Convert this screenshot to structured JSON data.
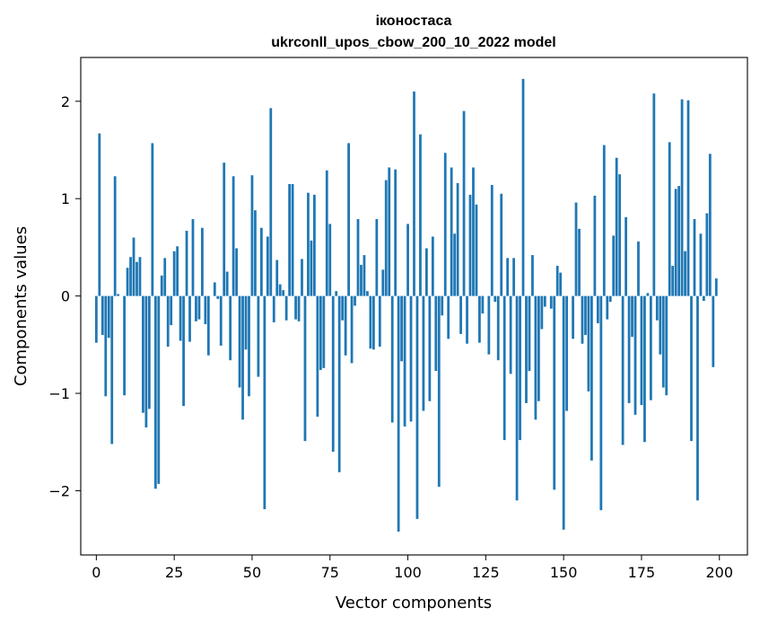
{
  "chart_data": {
    "type": "bar",
    "title": "іконостаса",
    "subtitle": "ukrconll_upos_cbow_200_10_2022 model",
    "xlabel": "Vector components",
    "ylabel": "Components values",
    "xlim": [
      -5,
      209
    ],
    "ylim": [
      -2.66,
      2.45
    ],
    "xticks": [
      0,
      25,
      50,
      75,
      100,
      125,
      150,
      175,
      200
    ],
    "yticks": [
      -2,
      -1,
      0,
      1,
      2
    ],
    "grid": false,
    "legend": "none",
    "bar_color": "#1f77b4",
    "values": [
      -0.48,
      1.67,
      -0.4,
      -1.03,
      -0.43,
      -1.52,
      1.23,
      0.02,
      0.0,
      -1.02,
      0.29,
      0.4,
      0.6,
      0.35,
      0.4,
      -1.2,
      -1.35,
      -1.16,
      1.57,
      -1.98,
      -1.93,
      0.21,
      0.39,
      -0.52,
      -0.3,
      0.46,
      0.51,
      -0.46,
      -1.13,
      0.67,
      -0.47,
      0.79,
      -0.26,
      -0.24,
      0.7,
      -0.29,
      -0.61,
      0.0,
      0.14,
      -0.03,
      -0.51,
      1.37,
      0.25,
      -0.66,
      1.23,
      0.49,
      -0.94,
      -1.27,
      -0.55,
      -1.03,
      1.24,
      0.88,
      -0.83,
      0.7,
      -2.19,
      0.61,
      1.93,
      -0.27,
      0.37,
      0.12,
      0.06,
      -0.25,
      1.15,
      1.15,
      -0.24,
      -0.26,
      0.38,
      -1.49,
      1.06,
      0.57,
      1.04,
      -1.24,
      -0.76,
      -0.74,
      1.29,
      0.74,
      -1.6,
      0.05,
      -1.81,
      -0.25,
      -0.61,
      1.57,
      -0.69,
      -0.1,
      0.79,
      0.32,
      0.42,
      0.05,
      -0.54,
      -0.55,
      0.79,
      -0.52,
      0.27,
      1.19,
      1.32,
      -1.3,
      1.3,
      -2.42,
      -0.67,
      -1.34,
      0.74,
      -1.29,
      2.1,
      -2.29,
      1.66,
      -1.18,
      0.49,
      -1.08,
      0.61,
      -0.77,
      -1.96,
      -0.2,
      1.47,
      -0.44,
      1.32,
      0.64,
      1.16,
      -0.39,
      1.9,
      -0.49,
      1.04,
      1.32,
      0.94,
      -0.48,
      -0.18,
      0.0,
      -0.6,
      1.14,
      -0.06,
      -0.66,
      1.05,
      -1.48,
      0.39,
      -0.8,
      0.39,
      -2.1,
      -1.48,
      2.23,
      -1.1,
      -0.77,
      0.42,
      -1.27,
      -1.08,
      -0.34,
      -0.11,
      0.0,
      -0.13,
      -1.99,
      0.31,
      0.24,
      -2.4,
      -1.18,
      0.0,
      -0.44,
      0.96,
      0.69,
      -0.49,
      -0.4,
      -0.98,
      -1.69,
      1.03,
      -0.28,
      -2.2,
      1.55,
      -0.24,
      -0.06,
      0.62,
      1.42,
      1.25,
      -1.53,
      0.81,
      -1.1,
      -0.42,
      -1.22,
      0.56,
      -1.12,
      -1.5,
      0.03,
      -1.07,
      2.08,
      -0.25,
      -0.6,
      -0.94,
      -1.02,
      1.58,
      0.31,
      1.1,
      1.13,
      2.02,
      0.46,
      2.01,
      -1.49,
      0.79,
      -2.1,
      0.64,
      -0.05,
      0.85,
      1.46,
      -0.73,
      0.18
    ]
  }
}
